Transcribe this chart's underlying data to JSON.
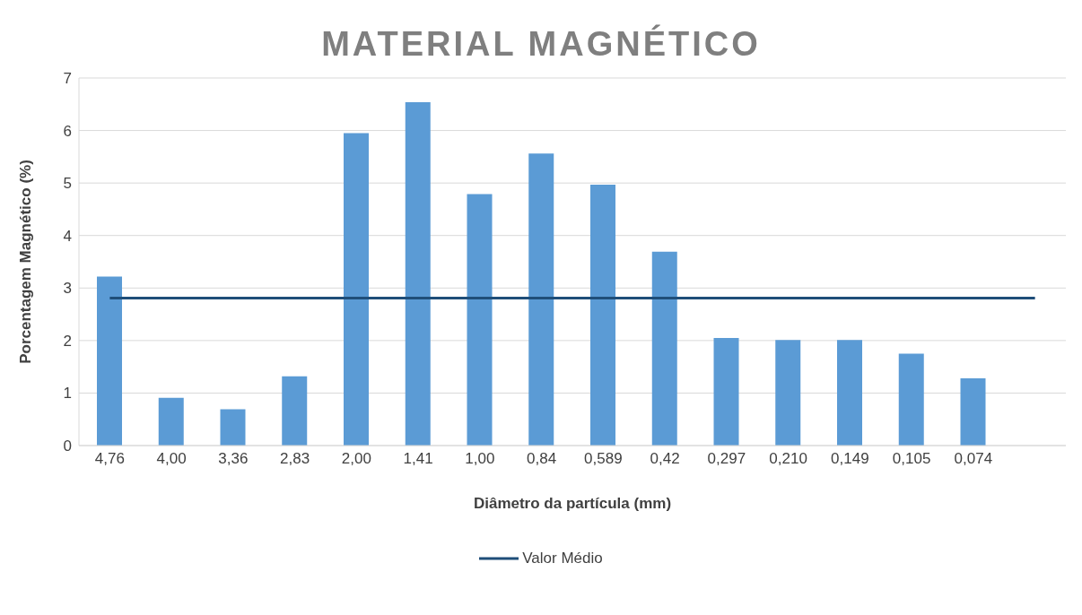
{
  "chart_data": {
    "type": "bar",
    "title": "MATERIAL MAGNÉTICO",
    "xlabel": "Diâmetro da partícula (mm)",
    "ylabel": "Porcentagem Magnético (%)",
    "categories": [
      "4,76",
      "4,00",
      "3,36",
      "2,83",
      "2,00",
      "1,41",
      "1,00",
      "0,84",
      "0,589",
      "0,42",
      "0,297",
      "0,210",
      "0,149",
      "0,105",
      "0,074",
      null
    ],
    "series": [
      {
        "color": "#5b9bd5",
        "values": [
          3.22,
          0.91,
          0.69,
          1.32,
          5.95,
          6.54,
          4.79,
          5.56,
          4.97,
          3.69,
          2.05,
          2.01,
          2.01,
          1.75,
          1.28,
          null
        ]
      },
      {
        "type": "line",
        "name": "Valor Médio",
        "color": "#1f4e79",
        "values": [
          2.81,
          2.81,
          2.81,
          2.81,
          2.81,
          2.81,
          2.81,
          2.81,
          2.81,
          2.81,
          2.81,
          2.81,
          2.81,
          2.81,
          2.81,
          2.81
        ]
      }
    ],
    "ylim": [
      0,
      7
    ],
    "yticks": [
      0,
      1,
      2,
      3,
      4,
      5,
      6,
      7
    ],
    "grid": "y",
    "legend": "bottom",
    "marker": "none",
    "line_style": "solid"
  }
}
